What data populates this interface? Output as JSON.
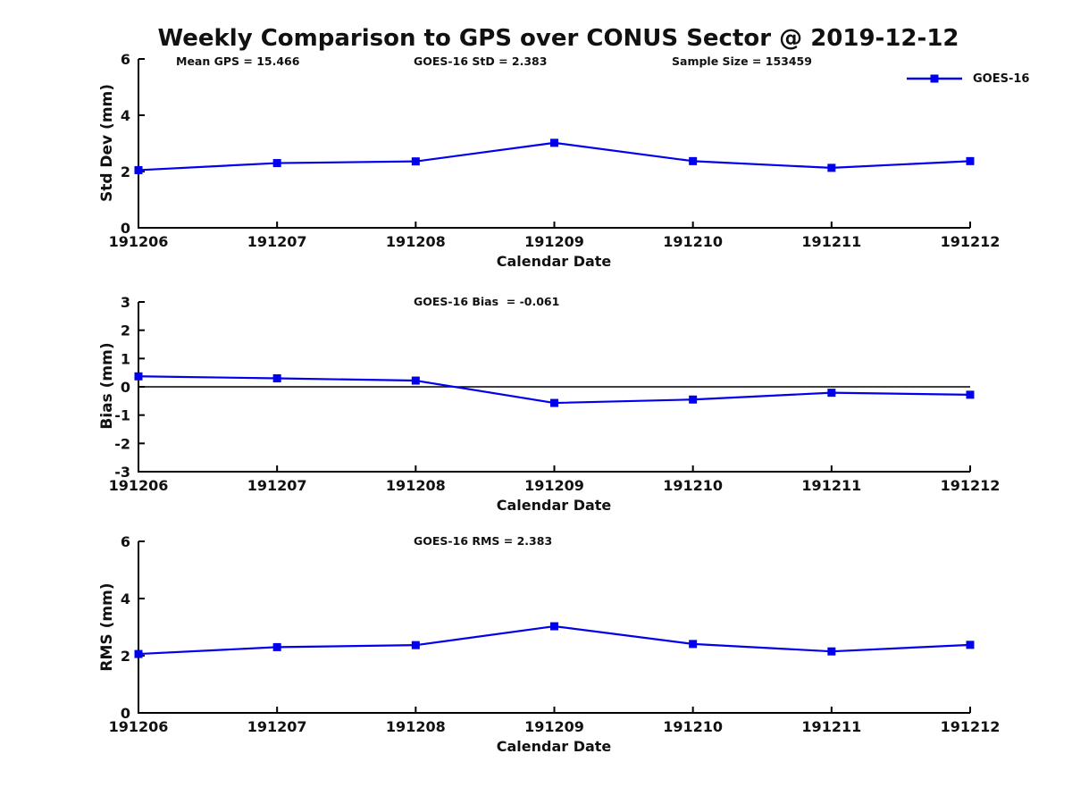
{
  "title": "Weekly Comparison to GPS over CONUS Sector @ 2019-12-12",
  "annotations": {
    "mean_gps": "Mean GPS = 15.466",
    "std": "GOES-16 StD = 2.383",
    "sample_size": "Sample Size = 153459",
    "bias": "GOES-16 Bias  = -0.061",
    "rms": "GOES-16 RMS = 2.383"
  },
  "legend": {
    "label": "GOES-16",
    "color": "#0000EE",
    "position": "top-right"
  },
  "colors": {
    "line": "#0000EE",
    "axis": "#000000",
    "text": "#111111",
    "background": "#FFFFFF",
    "zero_line": "#000000"
  },
  "chart_data": [
    {
      "type": "line",
      "subplot": "std-dev",
      "categories": [
        "191206",
        "191207",
        "191208",
        "191209",
        "191210",
        "191211",
        "191212"
      ],
      "series": [
        {
          "name": "GOES-16",
          "color": "#0000EE",
          "marker": "square",
          "values": [
            2.05,
            2.3,
            2.36,
            3.02,
            2.37,
            2.13,
            2.37
          ]
        }
      ],
      "xlabel": "Calendar Date",
      "ylabel": "Std Dev (mm)",
      "ylim": [
        0,
        6
      ],
      "yticks": [
        0,
        2,
        4,
        6
      ],
      "grid": false,
      "annotations": [
        "Mean GPS = 15.466",
        "GOES-16 StD = 2.383",
        "Sample Size = 153459"
      ],
      "legend_entries": [
        "GOES-16"
      ]
    },
    {
      "type": "line",
      "subplot": "bias",
      "categories": [
        "191206",
        "191207",
        "191208",
        "191209",
        "191210",
        "191211",
        "191212"
      ],
      "series": [
        {
          "name": "GOES-16",
          "color": "#0000EE",
          "marker": "square",
          "values": [
            0.37,
            0.3,
            0.22,
            -0.57,
            -0.45,
            -0.21,
            -0.28
          ]
        }
      ],
      "xlabel": "Calendar Date",
      "ylabel": "Bias (mm)",
      "ylim": [
        -3,
        3
      ],
      "yticks": [
        -3,
        -2,
        -1,
        0,
        1,
        2,
        3
      ],
      "zero_line": true,
      "grid": false,
      "annotations": [
        "GOES-16 Bias  = -0.061"
      ]
    },
    {
      "type": "line",
      "subplot": "rms",
      "categories": [
        "191206",
        "191207",
        "191208",
        "191209",
        "191210",
        "191211",
        "191212"
      ],
      "series": [
        {
          "name": "GOES-16",
          "color": "#0000EE",
          "marker": "square",
          "values": [
            2.06,
            2.3,
            2.37,
            3.03,
            2.41,
            2.15,
            2.38
          ]
        }
      ],
      "xlabel": "Calendar Date",
      "ylabel": "RMS (mm)",
      "ylim": [
        0,
        6
      ],
      "yticks": [
        0,
        2,
        4,
        6
      ],
      "grid": false,
      "annotations": [
        "GOES-16 RMS = 2.383"
      ]
    }
  ]
}
